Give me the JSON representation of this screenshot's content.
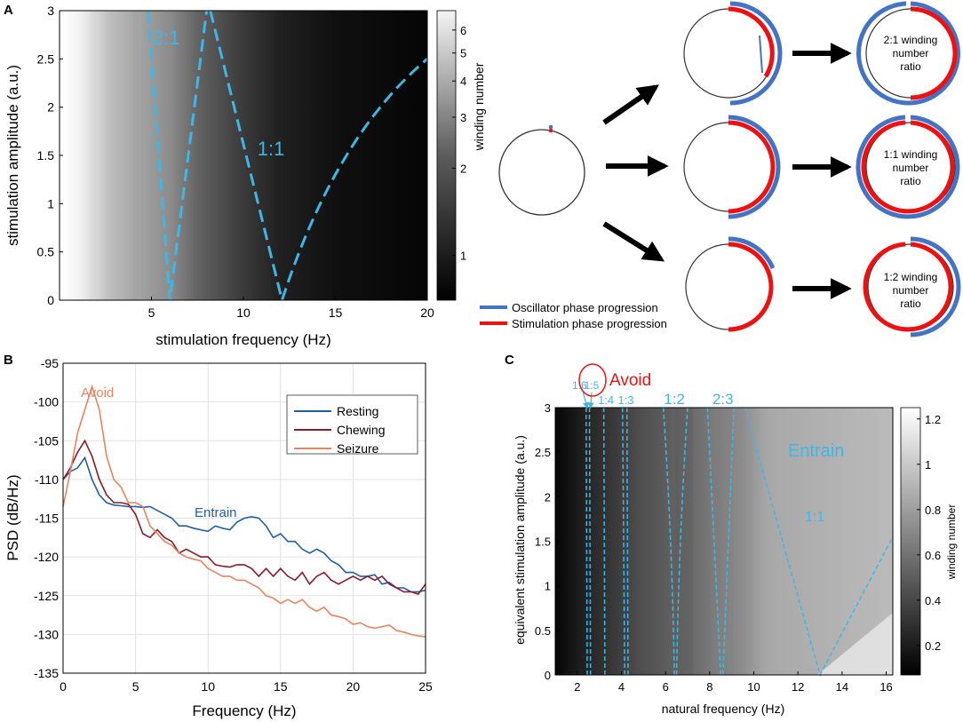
{
  "panels": {
    "A": {
      "letter": "A"
    },
    "B": {
      "letter": "B"
    },
    "C": {
      "letter": "C"
    }
  },
  "chart_data": [
    {
      "id": "A-heatmap",
      "type": "heatmap",
      "title": "",
      "xlabel": "stimulation frequency (Hz)",
      "ylabel": "stimulation amplitude (a.u.)",
      "xlim": [
        0,
        20
      ],
      "ylim": [
        0,
        3
      ],
      "xticks": [
        5,
        10,
        15,
        20
      ],
      "yticks": [
        0,
        0.5,
        1,
        1.5,
        2,
        2.5,
        3
      ],
      "colorbar": {
        "label": "winding number",
        "ticks": [
          1,
          2,
          3,
          4,
          5,
          6
        ],
        "scale": "log",
        "range": [
          0.7,
          7
        ]
      },
      "tongues": [
        {
          "label": "2:1",
          "tip_x": 6.0,
          "left_top_x": 4.8,
          "right_top_x": 8.0
        },
        {
          "label": "1:1",
          "tip_x": 12.1,
          "left_top_x": 8.2,
          "right_end": [
            20,
            2.5
          ]
        }
      ],
      "tongue_color": "#3fb7e6"
    },
    {
      "id": "A-schematic",
      "type": "diagram",
      "legend": [
        {
          "label": "Oscillator phase progression",
          "color": "#4472c4"
        },
        {
          "label": "Stimulation phase progression",
          "color": "#ee1111"
        }
      ],
      "outcomes": [
        {
          "label": "2:1 winding number ratio",
          "lines": [
            "2:1 winding",
            "number",
            "ratio"
          ]
        },
        {
          "label": "1:1 winding number ratio",
          "lines": [
            "1:1 winding",
            "number",
            "ratio"
          ]
        },
        {
          "label": "1:2 winding number ratio",
          "lines": [
            "1:2 winding",
            "number",
            "ratio"
          ]
        }
      ]
    },
    {
      "id": "B-psd",
      "type": "line",
      "xlabel": "Frequency (Hz)",
      "ylabel": "PSD (dB/Hz)",
      "xlim": [
        0,
        25
      ],
      "ylim": [
        -135,
        -95
      ],
      "xticks": [
        0,
        5,
        10,
        15,
        20,
        25
      ],
      "yticks": [
        -95,
        -100,
        -105,
        -110,
        -115,
        -120,
        -125,
        -130,
        -135
      ],
      "grid": true,
      "legend_position": "top-right",
      "annotations": [
        {
          "text": "Avoid",
          "x": 2.1,
          "y": -98.5,
          "color": "#e8845f"
        },
        {
          "text": "Entrain",
          "x": 11.5,
          "y": -114.3,
          "color": "#1f5fa8"
        }
      ],
      "series": [
        {
          "name": "Resting",
          "color": "#1f5fa8",
          "x": [
            0,
            0.5,
            1,
            1.5,
            2,
            2.5,
            3,
            3.5,
            4,
            4.5,
            5,
            5.5,
            6,
            6.5,
            7,
            7.5,
            8,
            8.5,
            9,
            9.5,
            10,
            10.5,
            11,
            11.5,
            12,
            12.5,
            13,
            13.5,
            14,
            14.5,
            15,
            15.5,
            16,
            16.5,
            17,
            17.5,
            18,
            18.5,
            19,
            19.5,
            20,
            20.5,
            21,
            21.5,
            22,
            22.5,
            23,
            23.5,
            24,
            24.5,
            25
          ],
          "values": [
            -110,
            -109,
            -108.5,
            -107.2,
            -110,
            -112,
            -113,
            -113.3,
            -113.4,
            -113.5,
            -113.5,
            -113.6,
            -113.5,
            -114,
            -114.5,
            -115,
            -116,
            -116,
            -116.3,
            -116.5,
            -116.7,
            -116,
            -116.3,
            -116.5,
            -115.5,
            -115,
            -114.8,
            -115,
            -116,
            -117.5,
            -117,
            -118,
            -118,
            -119,
            -119.5,
            -119,
            -119.5,
            -120.5,
            -121,
            -122,
            -122,
            -122.5,
            -122.5,
            -122.3,
            -123.5,
            -123.3,
            -124,
            -124,
            -124.5,
            -124.5,
            -124.3
          ]
        },
        {
          "name": "Chewing",
          "color": "#8b1a2a",
          "x": [
            0,
            0.5,
            1,
            1.5,
            2,
            2.5,
            3,
            3.5,
            4,
            4.5,
            5,
            5.5,
            6,
            6.5,
            7,
            7.5,
            8,
            8.5,
            9,
            9.5,
            10,
            10.5,
            11,
            11.5,
            12,
            12.5,
            13,
            13.5,
            14,
            14.5,
            15,
            15.5,
            16,
            16.5,
            17,
            17.5,
            18,
            18.5,
            19,
            19.5,
            20,
            20.5,
            21,
            21.5,
            22,
            22.5,
            23,
            23.5,
            24,
            24.5,
            25
          ],
          "values": [
            -110,
            -108.5,
            -106.5,
            -105,
            -107,
            -110,
            -112,
            -113,
            -113,
            -113.2,
            -114.5,
            -117,
            -117.5,
            -116.5,
            -117.5,
            -118,
            -119.5,
            -119,
            -119.5,
            -120,
            -120,
            -121,
            -121.2,
            -121.3,
            -121,
            -121,
            -121.5,
            -122.5,
            -121.5,
            -122.5,
            -121.5,
            -122.5,
            -123,
            -122,
            -123.5,
            -122.5,
            -122,
            -123,
            -123.5,
            -123,
            -122.5,
            -123,
            -122.5,
            -123,
            -122.5,
            -123.5,
            -124,
            -124.5,
            -124.5,
            -124.8,
            -123.5
          ]
        },
        {
          "name": "Seizure",
          "color": "#e8845f",
          "x": [
            0,
            0.5,
            1,
            1.5,
            2,
            2.5,
            3,
            3.5,
            4,
            4.5,
            5,
            5.5,
            6,
            6.5,
            7,
            7.5,
            8,
            8.5,
            9,
            9.5,
            10,
            10.5,
            11,
            11.5,
            12,
            12.5,
            13,
            13.5,
            14,
            14.5,
            15,
            15.5,
            16,
            16.5,
            17,
            17.5,
            18,
            18.5,
            19,
            19.5,
            20,
            20.5,
            21,
            21.5,
            22,
            22.5,
            23,
            23.5,
            24,
            24.5,
            25
          ],
          "values": [
            -113.5,
            -109,
            -104,
            -101,
            -98,
            -101,
            -107,
            -110,
            -111,
            -113,
            -113,
            -113.5,
            -116,
            -117,
            -118,
            -118.5,
            -119.5,
            -120,
            -120.3,
            -120.5,
            -121.5,
            -122,
            -122.5,
            -122.5,
            -123,
            -123,
            -123.5,
            -124,
            -125,
            -125.3,
            -126,
            -125.5,
            -126,
            -125.5,
            -126.5,
            -127,
            -126.5,
            -127.5,
            -127.7,
            -128,
            -128.7,
            -128.5,
            -129,
            -129.2,
            -129,
            -128.8,
            -129.5,
            -129.7,
            -130,
            -130.2,
            -130.3
          ]
        }
      ]
    },
    {
      "id": "C-heatmap",
      "type": "heatmap",
      "xlabel": "natural frequency (Hz)",
      "ylabel": "equivalent stimulation amplitude (a.u.)",
      "xlim": [
        1,
        16.3
      ],
      "ylim": [
        0,
        3
      ],
      "xticks": [
        2,
        4,
        6,
        8,
        10,
        12,
        14,
        16
      ],
      "yticks": [
        0,
        0.5,
        1,
        1.5,
        2,
        2.5,
        3
      ],
      "colorbar": {
        "label": "winding number",
        "ticks": [
          0.2,
          0.4,
          0.6,
          0.8,
          1,
          1.2
        ],
        "range": [
          0.07,
          1.25
        ]
      },
      "ratio_labels": [
        {
          "text": "1:6",
          "x": 2.1
        },
        {
          "text": "1:5",
          "x": 2.65
        },
        {
          "text": "1:4",
          "x": 3.3
        },
        {
          "text": "1:3",
          "x": 4.2
        },
        {
          "text": "1:2",
          "x": 6.4
        },
        {
          "text": "2:3",
          "x": 8.6
        }
      ],
      "annotations": [
        {
          "text": "Avoid",
          "color": "#ee1111"
        },
        {
          "text": "Entrain",
          "color": "#3fb7e6",
          "x": 13.4,
          "y": 2.6
        },
        {
          "text": "1:1",
          "color": "#3fb7e6",
          "x": 12.6,
          "y": 1.4
        }
      ],
      "guide_color": "#3fb7e6"
    }
  ]
}
